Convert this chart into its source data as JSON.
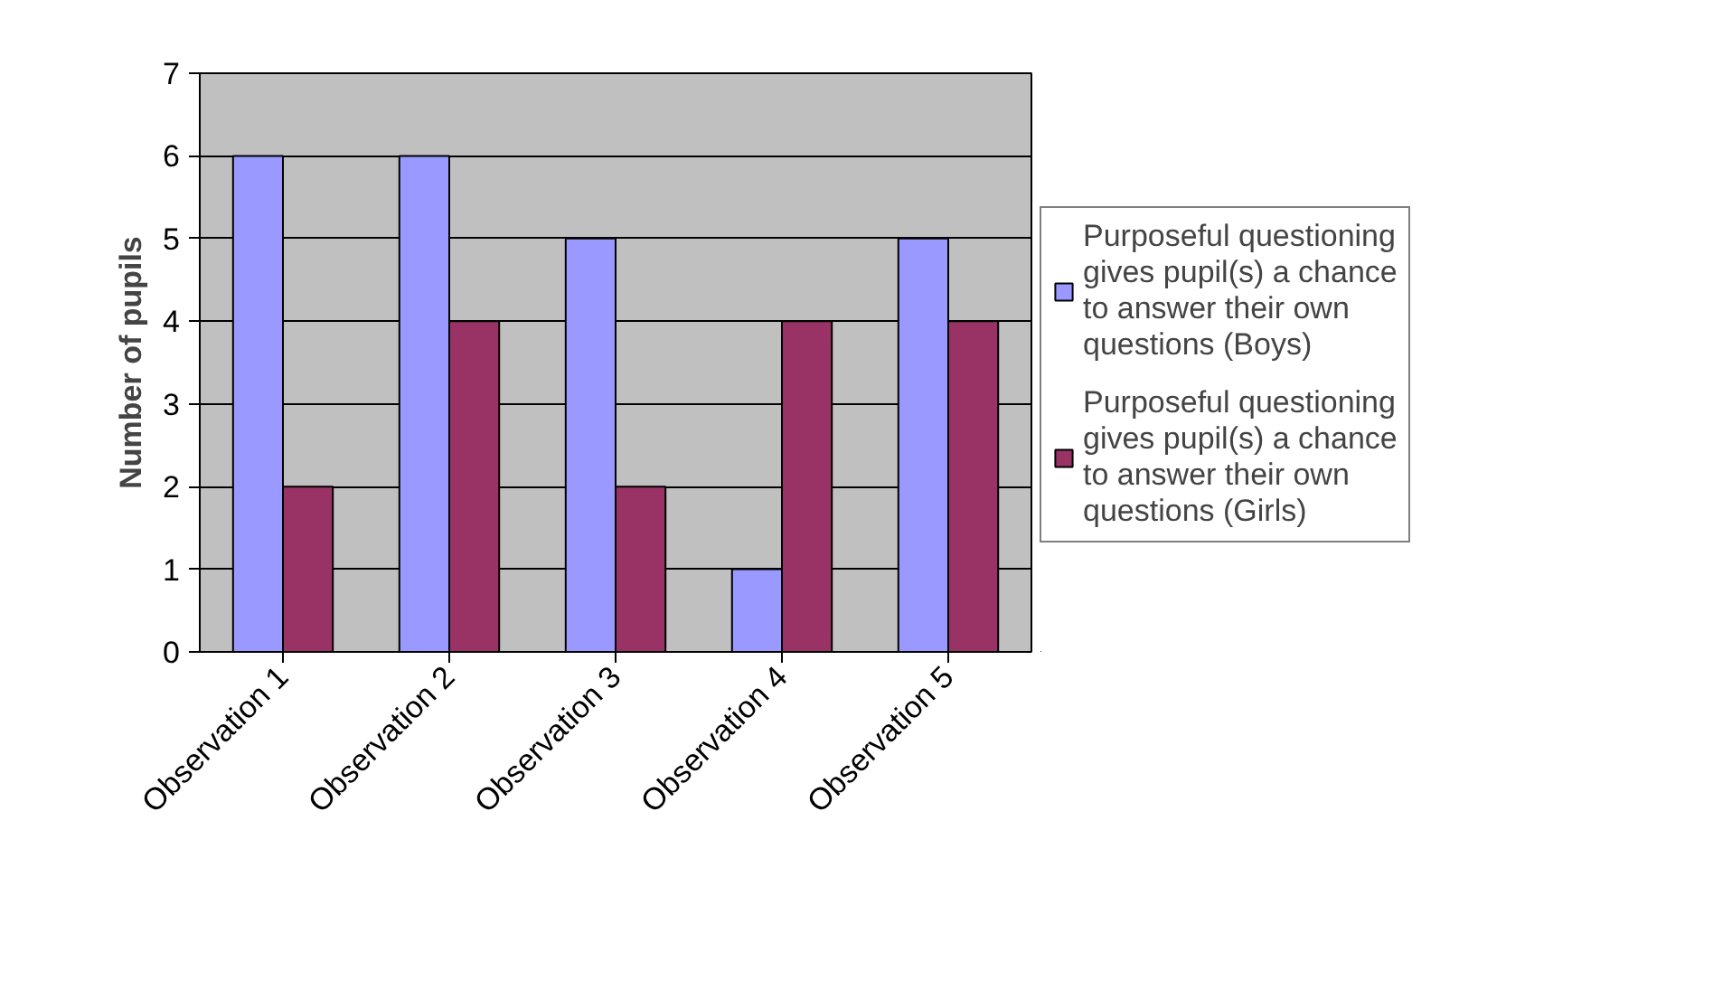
{
  "chart_data": {
    "type": "bar",
    "ylabel": "Number of pupils",
    "categories": [
      "Observation 1",
      "Observation 2",
      "Observation 3",
      "Observation 4",
      "Observation 5"
    ],
    "series": [
      {
        "name": "Purposeful questioning gives pupil(s) a chance to answer their own questions (Boys)",
        "color": "#9999ff",
        "values": [
          6,
          6,
          5,
          1,
          5
        ]
      },
      {
        "name": "Purposeful questioning gives pupil(s) a chance to answer their own questions (Girls)",
        "color": "#993366",
        "values": [
          2,
          4,
          2,
          4,
          4
        ]
      }
    ],
    "ylim": [
      0,
      7
    ],
    "yticks": [
      0,
      1,
      2,
      3,
      4,
      5,
      6,
      7
    ],
    "grid": "y",
    "legend": "right"
  }
}
